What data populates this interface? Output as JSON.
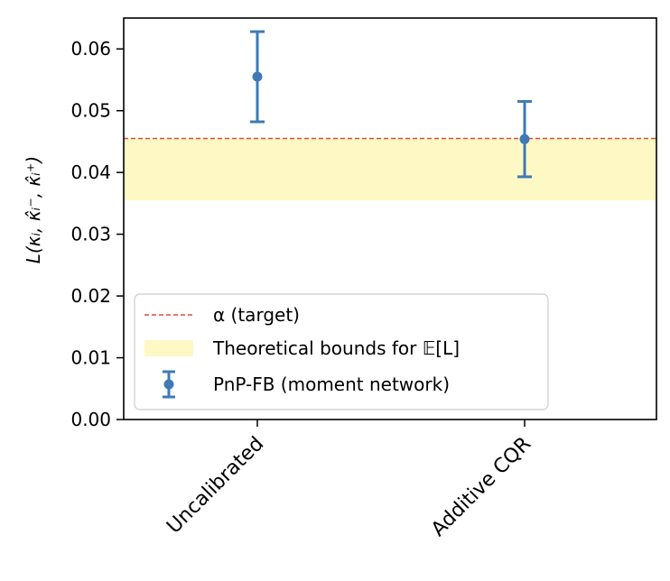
{
  "chart_data": {
    "type": "scatter",
    "title": "",
    "xlabel": "",
    "ylabel": "L(κᵢ, κ̂ᵢ⁻, κ̂ᵢ⁺)",
    "categories": [
      "Uncalibrated",
      "Additive CQR"
    ],
    "ylim": [
      0.0,
      0.065
    ],
    "yticks": [
      "0.00",
      "0.01",
      "0.02",
      "0.03",
      "0.04",
      "0.05",
      "0.06"
    ],
    "ytick_values": [
      0.0,
      0.01,
      0.02,
      0.03,
      0.04,
      0.05,
      0.06
    ],
    "grid": false,
    "legend_position": "lower-left",
    "target_alpha": 0.0455,
    "bounds": [
      0.0355,
      0.0455
    ],
    "series": [
      {
        "name": "PnP-FB (moment network)",
        "values": [
          0.0555,
          0.0454
        ],
        "err_low": [
          0.0482,
          0.0393
        ],
        "err_high": [
          0.0628,
          0.0515
        ],
        "color": "#3e7ab5"
      }
    ],
    "legend": {
      "alpha_label": "α (target)",
      "bounds_label": "Theoretical bounds for 𝔼[L]",
      "series_label": "PnP-FB (moment network)"
    },
    "colors": {
      "alpha_line": "#e04b3c",
      "bounds_fill": "#fdf8c4",
      "series": "#3e7ab5"
    }
  }
}
